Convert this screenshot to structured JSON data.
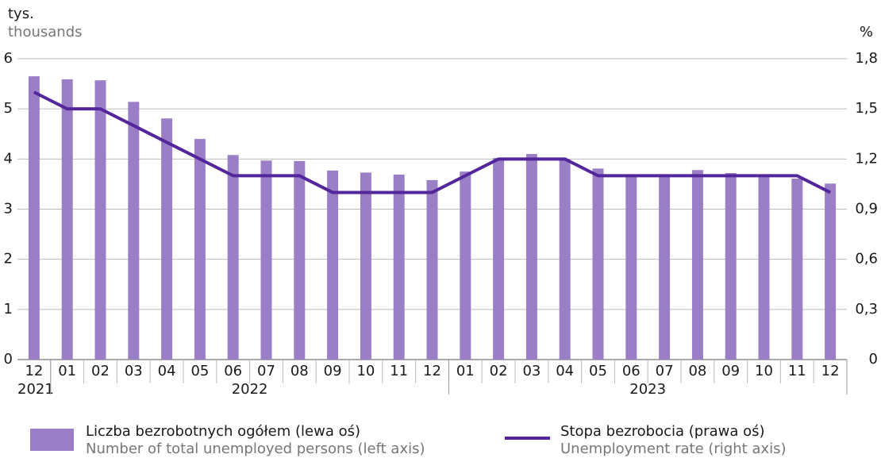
{
  "chart_data": {
    "type": "bar-line",
    "y_label": "tys.",
    "y_label_en": "thousands",
    "y2_label": "%",
    "category_groups": [
      {
        "label": "2021",
        "categories": [
          "12"
        ]
      },
      {
        "label": "2022",
        "categories": [
          "01",
          "02",
          "03",
          "04",
          "05",
          "06",
          "07",
          "08",
          "09",
          "10",
          "11",
          "12"
        ]
      },
      {
        "label": "2023",
        "categories": [
          "01",
          "02",
          "03",
          "04",
          "05",
          "06",
          "07",
          "08",
          "09",
          "10",
          "11",
          "12"
        ]
      }
    ],
    "series": [
      {
        "name": "Liczba bezrobotnych ogółem (lewa oś)",
        "name_en": "Number of total unemployed persons (left axis)",
        "type": "bar",
        "color": "#9b7fc6",
        "values": [
          5.65,
          5.59,
          5.57,
          5.14,
          4.81,
          4.4,
          4.08,
          3.97,
          3.96,
          3.77,
          3.73,
          3.69,
          3.58,
          3.75,
          4.02,
          4.1,
          4.0,
          3.81,
          3.69,
          3.69,
          3.78,
          3.72,
          3.69,
          3.61,
          3.51
        ]
      },
      {
        "name": "Stopa bezrobocia (prawa oś)",
        "name_en": "Unemployment rate (right axis)",
        "type": "line",
        "axis": "y2",
        "color": "#53279b",
        "values": [
          1.6,
          1.5,
          1.5,
          1.4,
          1.3,
          1.2,
          1.1,
          1.1,
          1.1,
          1.0,
          1.0,
          1.0,
          1.0,
          1.1,
          1.2,
          1.2,
          1.2,
          1.1,
          1.1,
          1.1,
          1.1,
          1.1,
          1.1,
          1.1,
          1.0
        ]
      }
    ],
    "ylim": [
      0,
      6
    ],
    "yticks": [
      0,
      1,
      2,
      3,
      4,
      5,
      6
    ],
    "y2lim": [
      0,
      1.8
    ],
    "y2ticks": [
      0,
      {
        "value": 0.3,
        "label": "0,3"
      },
      {
        "value": 0.6,
        "label": "0,6"
      },
      {
        "value": 0.9,
        "label": "0,9"
      },
      {
        "value": 1.2,
        "label": "1,2"
      },
      {
        "value": 1.5,
        "label": "1,5"
      },
      {
        "value": 1.8,
        "label": "1,8"
      }
    ],
    "grid": true
  }
}
